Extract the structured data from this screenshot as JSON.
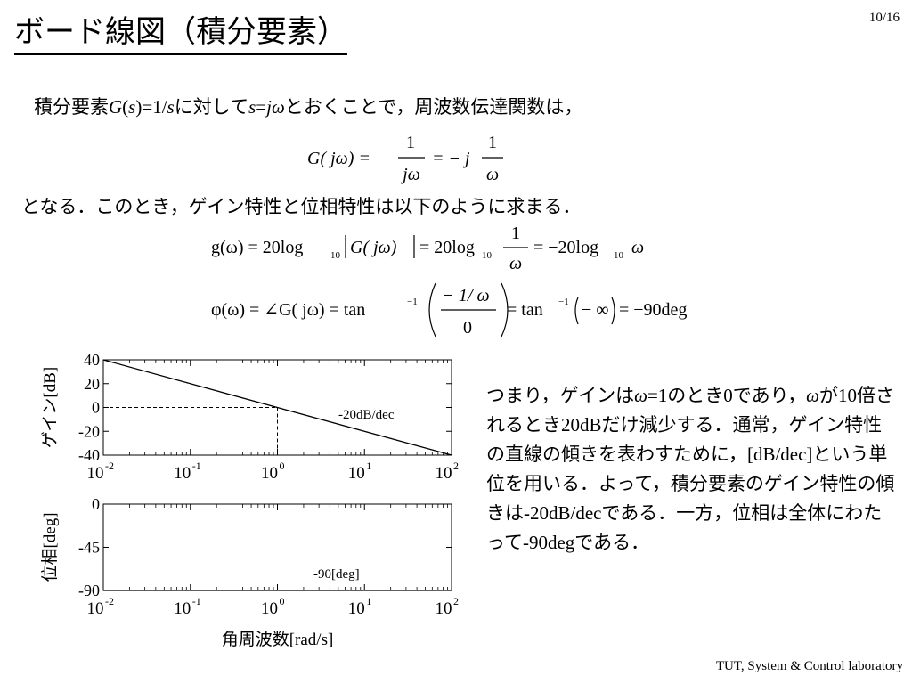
{
  "slide": {
    "title": "ボード線図（積分要素）",
    "page_number": "10/16",
    "footer": "TUT, System & Control laboratory"
  },
  "intro": {
    "t1": "積分要素",
    "t2": "G",
    "t3": "(",
    "t4": "s",
    "t5": ")=1/",
    "t6": "s",
    "t7": "に対して",
    "t8": "s",
    "t9": "=",
    "t10": "jω",
    "t11": "とおくことで，周波数伝達関数は，"
  },
  "result_line": "となる．このとき，ゲイン特性と位相特性は以下のように求まる．",
  "equations": {
    "eq1": {
      "lhs": "G( jω) =",
      "frac1_num": "1",
      "frac1_den": "jω",
      "mid": "= − j",
      "frac2_num": "1",
      "frac2_den": "ω"
    },
    "eq2": {
      "lhs": "g(ω) = 20log",
      "sub1": "10",
      "abs": "G( jω)",
      "eq": "= 20log",
      "sub2": "10",
      "frac_num": "1",
      "frac_den": "ω",
      "rhs": "= −20log",
      "sub3": "10",
      "rhs_var": "ω"
    },
    "eq3": {
      "lhs": "φ(ω) = ∠G( jω) = tan",
      "sup1": "−1",
      "frac_num": "− 1/ ω",
      "frac_den": "0",
      "mid": "= tan",
      "sup2": "−1",
      "inner": "− ∞",
      "rhs": "= −90deg"
    }
  },
  "explanation": [
    {
      "text": "つまり，ゲインは",
      "style": "sans"
    },
    {
      "text": "ω",
      "style": "italic"
    },
    {
      "text": "=1",
      "style": "serif"
    },
    {
      "text": "のとき",
      "style": "sans"
    },
    {
      "text": "0",
      "style": "serif"
    },
    {
      "text": "であり，",
      "style": "sans"
    },
    {
      "text": "ω",
      "style": "italic"
    },
    {
      "text": "が",
      "style": "sans"
    },
    {
      "text": "10",
      "style": "serif"
    },
    {
      "text": "倍されるとき",
      "style": "sans"
    },
    {
      "text": "20dB",
      "style": "serif"
    },
    {
      "text": "だけ減少する．通常，ゲイン特性の直線の傾きを表わすために，",
      "style": "sans"
    },
    {
      "text": "[dB/dec]",
      "style": "serif"
    },
    {
      "text": "という単位を用いる．よって，積分要素のゲイン特性の傾きは",
      "style": "sans"
    },
    {
      "text": "-20dB/dec",
      "style": "serif"
    },
    {
      "text": "である．一方，位相は全体にわたって",
      "style": "sans"
    },
    {
      "text": "-90deg",
      "style": "serif"
    },
    {
      "text": "である．",
      "style": "sans"
    }
  ],
  "chart_data": [
    {
      "type": "line",
      "xscale": "log",
      "xlim": [
        0.01,
        100
      ],
      "ylim": [
        -40,
        40
      ],
      "ylabel": "ゲイン[dB]",
      "x_ticks": [
        0.01,
        0.1,
        1,
        10,
        100
      ],
      "x_tick_labels": [
        [
          "10",
          "-2"
        ],
        [
          "10",
          "-1"
        ],
        [
          "10",
          "0"
        ],
        [
          "10",
          "1"
        ],
        [
          "10",
          "2"
        ]
      ],
      "y_ticks": [
        40,
        20,
        0,
        -20,
        -40
      ],
      "y_tick_labels": [
        "40",
        "20",
        "0",
        "-20",
        "-40"
      ],
      "series": [
        {
          "x": [
            0.01,
            100
          ],
          "y": [
            40,
            -40
          ]
        }
      ],
      "reference_lines": [
        {
          "x": [
            0.01,
            1
          ],
          "y": [
            0,
            0
          ]
        },
        {
          "x": [
            1,
            1
          ],
          "y": [
            0,
            -40
          ]
        }
      ],
      "annotation": "-20dB/dec"
    },
    {
      "type": "line",
      "xscale": "log",
      "xlim": [
        0.01,
        100
      ],
      "ylim": [
        -90,
        0
      ],
      "ylabel": "位相[deg]",
      "xlabel": "角周波数[rad/s]",
      "x_ticks": [
        0.01,
        0.1,
        1,
        10,
        100
      ],
      "x_tick_labels": [
        [
          "10",
          "-2"
        ],
        [
          "10",
          "-1"
        ],
        [
          "10",
          "0"
        ],
        [
          "10",
          "1"
        ],
        [
          "10",
          "2"
        ]
      ],
      "y_ticks": [
        0,
        -45,
        -90
      ],
      "y_tick_labels": [
        "0",
        "-45",
        "-90"
      ],
      "series": [
        {
          "x": [
            0.01,
            100
          ],
          "y": [
            -90,
            -90
          ]
        }
      ],
      "annotation": "-90[deg]"
    }
  ]
}
